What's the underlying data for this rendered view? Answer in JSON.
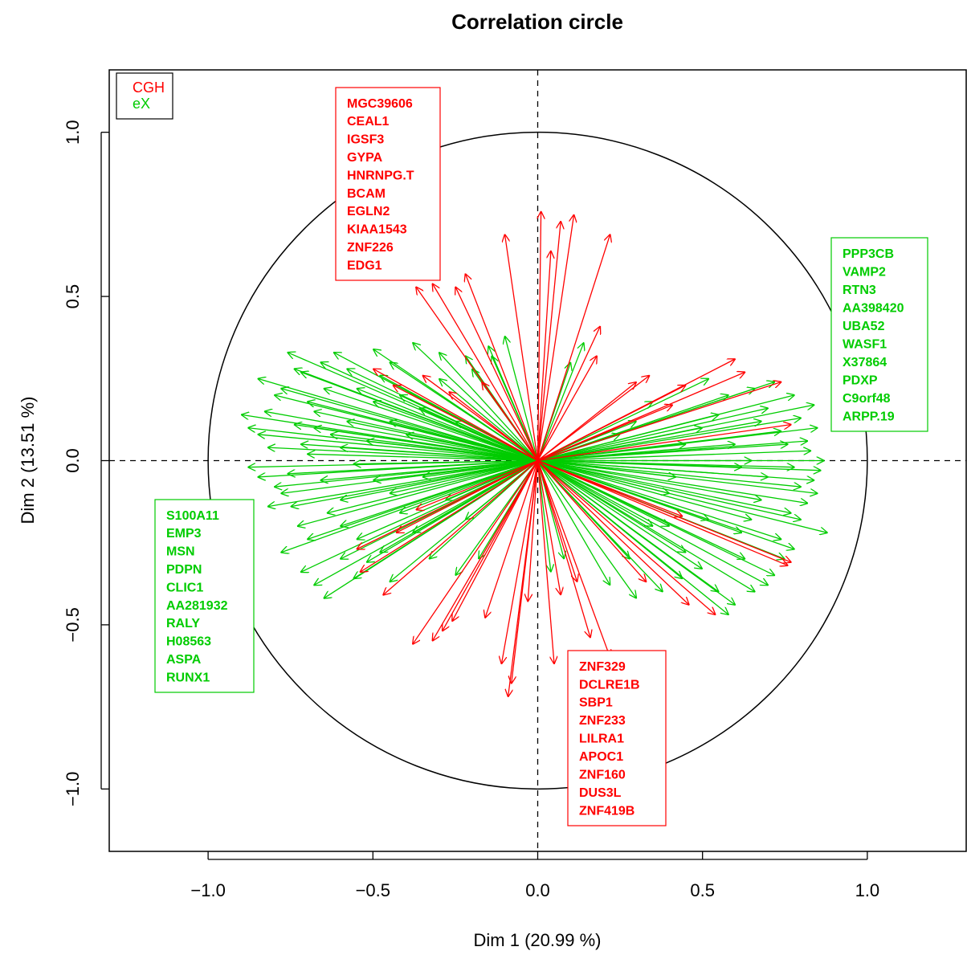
{
  "chart_data": {
    "type": "scatter",
    "title": "Correlation circle",
    "xlabel": "Dim 1 (20.99 %)",
    "ylabel": "Dim 2 (13.51 %)",
    "xlim": [
      -1.3,
      1.3
    ],
    "ylim": [
      -1.19,
      1.19
    ],
    "xticks": [
      -1.0,
      -0.5,
      0.0,
      0.5,
      1.0
    ],
    "yticks": [
      -1.0,
      -0.5,
      0.0,
      0.5,
      1.0
    ],
    "xtick_labels": [
      "−1.0",
      "−0.5",
      "0.0",
      "0.5",
      "1.0"
    ],
    "ytick_labels": [
      "−1.0",
      "−0.5",
      "0.0",
      "0.5",
      "1.0"
    ],
    "unit_circle_radius": 1.0,
    "grid": false,
    "reference_lines": "dashed lines at x = 0 and y = 0",
    "legend_position": "top-left",
    "legend": [
      {
        "name": "CGH",
        "color": "#ff0000"
      },
      {
        "name": "eX",
        "color": "#00cc00"
      }
    ],
    "series": [
      {
        "name": "CGH",
        "color": "#ff0000",
        "label_box": {
          "position": "top-center",
          "labels": [
            "MGC39606",
            "CEAL1",
            "IGSF3",
            "GYPA",
            "HNRNPG.T",
            "BCAM",
            "EGLN2",
            "KIAA1543",
            "ZNF226",
            "EDG1"
          ]
        },
        "label_box_2": {
          "position": "bottom-center",
          "labels": [
            "ZNF329",
            "DCLRE1B",
            "SBP1",
            "ZNF233",
            "LILRA1",
            "APOC1",
            "ZNF160",
            "DUS3L",
            "ZNF419B"
          ]
        },
        "points": [
          [
            -0.37,
            0.53
          ],
          [
            -0.32,
            0.54
          ],
          [
            -0.25,
            0.53
          ],
          [
            -0.22,
            0.57
          ],
          [
            -0.1,
            0.69
          ],
          [
            0.01,
            0.76
          ],
          [
            0.04,
            0.64
          ],
          [
            0.07,
            0.73
          ],
          [
            0.11,
            0.75
          ],
          [
            0.22,
            0.69
          ],
          [
            0.19,
            0.41
          ],
          [
            0.34,
            0.26
          ],
          [
            0.45,
            0.23
          ],
          [
            0.6,
            0.31
          ],
          [
            0.63,
            0.27
          ],
          [
            0.74,
            0.24
          ],
          [
            0.77,
            0.11
          ],
          [
            0.77,
            -0.31
          ],
          [
            0.76,
            -0.32
          ],
          [
            0.54,
            -0.47
          ],
          [
            0.46,
            -0.44
          ],
          [
            0.33,
            -0.37
          ],
          [
            0.44,
            -0.17
          ],
          [
            0.05,
            -0.62
          ],
          [
            -0.09,
            -0.72
          ],
          [
            -0.08,
            -0.68
          ],
          [
            -0.11,
            -0.62
          ],
          [
            -0.16,
            -0.48
          ],
          [
            -0.26,
            -0.49
          ],
          [
            -0.29,
            -0.52
          ],
          [
            -0.32,
            -0.55
          ],
          [
            -0.38,
            -0.56
          ],
          [
            -0.47,
            -0.41
          ],
          [
            -0.54,
            -0.34
          ],
          [
            -0.55,
            -0.27
          ],
          [
            -0.43,
            -0.22
          ],
          [
            -0.37,
            -0.15
          ],
          [
            -0.44,
            0.23
          ],
          [
            -0.5,
            0.28
          ],
          [
            -0.35,
            0.26
          ],
          [
            -0.27,
            0.21
          ],
          [
            -0.17,
            0.24
          ],
          [
            0.22,
            -0.6
          ],
          [
            0.16,
            -0.54
          ],
          [
            0.07,
            -0.41
          ],
          [
            -0.03,
            -0.43
          ],
          [
            0.3,
            0.24
          ],
          [
            0.41,
            0.17
          ],
          [
            0.18,
            0.32
          ],
          [
            0.12,
            -0.37
          ]
        ]
      },
      {
        "name": "eX",
        "color": "#00cc00",
        "label_box": {
          "position": "right",
          "labels": [
            "PPP3CB",
            "VAMP2",
            "RTN3",
            "AA398420",
            "UBA52",
            "WASF1",
            "X37864",
            "PDXP",
            "C9orf48",
            "ARPP.19"
          ]
        },
        "label_box_2": {
          "position": "left",
          "labels": [
            "S100A11",
            "EMP3",
            "MSN",
            "PDPN",
            "CLIC1",
            "AA281932",
            "RALY",
            "H08563",
            "ASPA",
            "RUNX1"
          ]
        },
        "points": [
          [
            -0.9,
            0.14
          ],
          [
            -0.85,
            0.08
          ],
          [
            -0.78,
            0.22
          ],
          [
            -0.76,
            0.33
          ],
          [
            -0.72,
            0.27
          ],
          [
            -0.7,
            0.18
          ],
          [
            -0.68,
            0.1
          ],
          [
            -0.66,
            0.3
          ],
          [
            -0.65,
            0.22
          ],
          [
            -0.83,
            0.15
          ],
          [
            -0.8,
            0.2
          ],
          [
            -0.74,
            0.11
          ],
          [
            -0.72,
            0.05
          ],
          [
            -0.7,
            0.02
          ],
          [
            -0.88,
            -0.02
          ],
          [
            -0.85,
            -0.05
          ],
          [
            -0.8,
            -0.08
          ],
          [
            -0.78,
            -0.1
          ],
          [
            -0.75,
            -0.14
          ],
          [
            -0.73,
            -0.2
          ],
          [
            -0.7,
            -0.24
          ],
          [
            -0.78,
            -0.28
          ],
          [
            -0.72,
            -0.34
          ],
          [
            -0.68,
            -0.38
          ],
          [
            -0.65,
            -0.42
          ],
          [
            -0.6,
            -0.3
          ],
          [
            -0.55,
            -0.24
          ],
          [
            -0.6,
            -0.2
          ],
          [
            -0.62,
            0.33
          ],
          [
            -0.58,
            0.28
          ],
          [
            -0.5,
            0.34
          ],
          [
            -0.45,
            0.3
          ],
          [
            -0.38,
            0.36
          ],
          [
            -0.3,
            0.33
          ],
          [
            -0.22,
            0.32
          ],
          [
            -0.15,
            0.35
          ],
          [
            -0.55,
            0.22
          ],
          [
            -0.5,
            0.18
          ],
          [
            -0.45,
            0.12
          ],
          [
            -0.4,
            0.08
          ],
          [
            -0.6,
            0.04
          ],
          [
            -0.56,
            -0.01
          ],
          [
            -0.5,
            -0.06
          ],
          [
            -0.45,
            -0.1
          ],
          [
            -0.42,
            -0.16
          ],
          [
            -0.38,
            -0.22
          ],
          [
            -0.33,
            -0.3
          ],
          [
            -0.45,
            -0.37
          ],
          [
            -0.52,
            -0.31
          ],
          [
            -0.88,
            0.1
          ],
          [
            -0.82,
            0.04
          ],
          [
            -0.76,
            -0.04
          ],
          [
            -0.85,
            0.25
          ],
          [
            -0.68,
            0.15
          ],
          [
            -0.63,
            0.08
          ],
          [
            -0.58,
            0.12
          ],
          [
            -0.52,
            0.06
          ],
          [
            -0.48,
            0.26
          ],
          [
            -0.42,
            0.2
          ],
          [
            -0.36,
            0.16
          ],
          [
            -0.3,
            0.25
          ],
          [
            -0.25,
            0.12
          ],
          [
            -0.2,
            0.28
          ],
          [
            -0.35,
            -0.05
          ],
          [
            -0.28,
            -0.12
          ],
          [
            -0.22,
            -0.18
          ],
          [
            -0.18,
            -0.3
          ],
          [
            -0.25,
            -0.35
          ],
          [
            -0.6,
            -0.12
          ],
          [
            -0.66,
            -0.06
          ],
          [
            0.85,
            0.1
          ],
          [
            0.87,
            0.0
          ],
          [
            0.84,
            -0.06
          ],
          [
            0.82,
            -0.13
          ],
          [
            0.8,
            -0.18
          ],
          [
            0.88,
            -0.22
          ],
          [
            0.78,
            -0.27
          ],
          [
            0.75,
            -0.3
          ],
          [
            0.72,
            -0.35
          ],
          [
            0.7,
            -0.38
          ],
          [
            0.66,
            -0.4
          ],
          [
            0.6,
            -0.44
          ],
          [
            0.58,
            -0.47
          ],
          [
            0.55,
            -0.4
          ],
          [
            0.5,
            -0.33
          ],
          [
            0.45,
            -0.28
          ],
          [
            0.4,
            -0.2
          ],
          [
            0.72,
            0.24
          ],
          [
            0.7,
            0.16
          ],
          [
            0.68,
            0.12
          ],
          [
            0.78,
            0.2
          ],
          [
            0.8,
            0.13
          ],
          [
            0.82,
            0.06
          ],
          [
            0.83,
            0.03
          ],
          [
            0.86,
            -0.03
          ],
          [
            0.85,
            -0.1
          ],
          [
            0.8,
            -0.08
          ],
          [
            0.76,
            0.05
          ],
          [
            0.74,
            0.09
          ],
          [
            0.7,
            -0.05
          ],
          [
            0.68,
            -0.12
          ],
          [
            0.65,
            -0.18
          ],
          [
            0.62,
            -0.22
          ],
          [
            0.58,
            0.2
          ],
          [
            0.55,
            0.14
          ],
          [
            0.5,
            0.1
          ],
          [
            0.45,
            0.05
          ],
          [
            0.42,
            -0.05
          ],
          [
            0.4,
            -0.1
          ],
          [
            0.35,
            0.18
          ],
          [
            0.3,
            0.12
          ],
          [
            0.25,
            0.08
          ],
          [
            0.6,
            0.05
          ],
          [
            0.62,
            -0.02
          ],
          [
            0.65,
            0.0
          ],
          [
            0.35,
            -0.2
          ],
          [
            0.28,
            -0.3
          ],
          [
            0.22,
            -0.38
          ],
          [
            0.3,
            -0.42
          ],
          [
            0.38,
            -0.4
          ],
          [
            0.14,
            0.36
          ],
          [
            0.1,
            0.3
          ],
          [
            0.08,
            -0.3
          ],
          [
            0.04,
            -0.34
          ],
          [
            -0.1,
            0.38
          ],
          [
            -0.14,
            0.32
          ],
          [
            0.78,
            -0.02
          ],
          [
            0.74,
            -0.24
          ],
          [
            0.66,
            0.22
          ],
          [
            0.52,
            -0.18
          ],
          [
            -0.82,
            -0.14
          ],
          [
            -0.74,
            0.28
          ],
          [
            -0.64,
            -0.16
          ],
          [
            -0.56,
            -0.36
          ],
          [
            -0.48,
            -0.28
          ],
          [
            0.84,
            0.17
          ],
          [
            0.77,
            -0.16
          ],
          [
            0.63,
            -0.3
          ],
          [
            0.52,
            0.25
          ],
          [
            0.44,
            -0.36
          ]
        ]
      }
    ]
  }
}
